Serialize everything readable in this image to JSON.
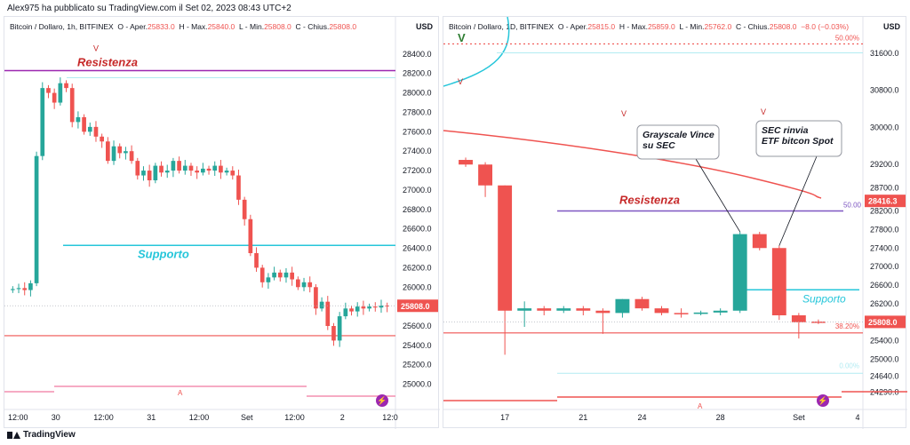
{
  "header": {
    "published": "Alex975 ha pubblicato su TradingView.com il Set 02, 2023 08:43 UTC+2"
  },
  "footer": {
    "brand": "TradingView"
  },
  "colors": {
    "up": "#26a69a",
    "down": "#ef5350",
    "support": "#26c6da",
    "resistance": "#9c27b0",
    "accent_red": "#c62828",
    "fib": "#7e57c2"
  },
  "chart_data": [
    {
      "type": "candlestick",
      "title": "Bitcoin / Dollaro, 1h, BITFINEX",
      "ohlc_label": {
        "o": "O - Aper.",
        "ov": "25833.0",
        "h": "H - Max.",
        "hv": "25840.0",
        "l": "L - Min.",
        "lv": "25808.0",
        "c": "C - Chius.",
        "cv": "25808.0"
      },
      "currency": "USD",
      "ylim": [
        24850,
        28600
      ],
      "y_ticks": [
        "28400.0",
        "28200.0",
        "28000.0",
        "27800.0",
        "27600.0",
        "27400.0",
        "27200.0",
        "27000.0",
        "26800.0",
        "26600.0",
        "26400.0",
        "26200.0",
        "26000.0",
        "25800.0",
        "25600.0",
        "25400.0",
        "25200.0",
        "25000.0"
      ],
      "x_ticks": [
        "12:00",
        "30",
        "12:00",
        "31",
        "12:00",
        "Set",
        "12:00",
        "2",
        "12:0"
      ],
      "price_label": "25808.0",
      "annotations": {
        "resistance": "Resistenza",
        "support": "Supporto",
        "v": "V",
        "a": "A"
      },
      "levels": {
        "resistance": 28230,
        "support": 26430,
        "low_line": 25500
      },
      "closes": [
        25980,
        25990,
        25970,
        26040,
        27350,
        28050,
        28000,
        27900,
        28100,
        28050,
        27700,
        27750,
        27600,
        27650,
        27550,
        27500,
        27300,
        27450,
        27380,
        27400,
        27300,
        27150,
        27200,
        27100,
        27250,
        27180,
        27200,
        27300,
        27200,
        27250,
        27200,
        27180,
        27220,
        27200,
        27250,
        27180,
        27200,
        27150,
        26900,
        26700,
        26350,
        26200,
        26050,
        26100,
        26150,
        26100,
        26150,
        26080,
        26000,
        26050,
        26000,
        25780,
        25850,
        25600,
        25450,
        25700,
        25780,
        25750,
        25800,
        25780,
        25800,
        25790,
        25810,
        25808
      ]
    },
    {
      "type": "candlestick",
      "title": "Bitcoin / Dollaro, 1D, BITFINEX",
      "ohlc_label": {
        "o": "O - Aper.",
        "ov": "25815.0",
        "h": "H - Max.",
        "hv": "25859.0",
        "l": "L - Min.",
        "lv": "25762.0",
        "c": "C - Chius.",
        "cv": "25808.0",
        "chg": "−8.0 (−0.03%)"
      },
      "currency": "USD",
      "ylim": [
        24150,
        32000
      ],
      "y_ticks": [
        "31600.0",
        "30800.0",
        "30000.0",
        "29200.0",
        "28700.0",
        "28200.0",
        "27800.0",
        "27400.0",
        "27000.0",
        "26600.0",
        "26200.0",
        "25800.0",
        "25400.0",
        "25000.0",
        "24640.0",
        "24290.0"
      ],
      "x_ticks": [
        "17",
        "21",
        "24",
        "28",
        "Set",
        "4"
      ],
      "price_labels": [
        "28416.3",
        "25808.0"
      ],
      "annotations": {
        "resistance": "Resistenza",
        "support": "Supporto",
        "callout1": [
          "Grayscale Vince",
          "su SEC"
        ],
        "callout2": [
          "SEC rinvia",
          "ETF bitcon Spot"
        ],
        "fib_50a": "50.00%",
        "fib_50b": "50.00",
        "fib_382": "38.20%",
        "fib_0": "0.00%",
        "v": "V",
        "a": "A"
      },
      "candles": [
        {
          "o": 29300,
          "h": 29350,
          "l": 29150,
          "c": 29200
        },
        {
          "o": 29200,
          "h": 29250,
          "l": 28500,
          "c": 28750
        },
        {
          "o": 28750,
          "h": 28750,
          "l": 25100,
          "c": 26050
        },
        {
          "o": 26050,
          "h": 26250,
          "l": 25700,
          "c": 26100
        },
        {
          "o": 26100,
          "h": 26150,
          "l": 25950,
          "c": 26050
        },
        {
          "o": 26050,
          "h": 26150,
          "l": 26000,
          "c": 26100
        },
        {
          "o": 26100,
          "h": 26150,
          "l": 25950,
          "c": 26050
        },
        {
          "o": 26050,
          "h": 26100,
          "l": 25550,
          "c": 26000
        },
        {
          "o": 26000,
          "h": 26300,
          "l": 25900,
          "c": 26300
        },
        {
          "o": 26300,
          "h": 26350,
          "l": 26050,
          "c": 26100
        },
        {
          "o": 26100,
          "h": 26150,
          "l": 25950,
          "c": 26000
        },
        {
          "o": 26000,
          "h": 26100,
          "l": 25900,
          "c": 25980
        },
        {
          "o": 25980,
          "h": 26050,
          "l": 25950,
          "c": 26010
        },
        {
          "o": 26010,
          "h": 26100,
          "l": 25950,
          "c": 26050
        },
        {
          "o": 26050,
          "h": 27750,
          "l": 26000,
          "c": 27700
        },
        {
          "o": 27700,
          "h": 27750,
          "l": 27350,
          "c": 27400
        },
        {
          "o": 27400,
          "h": 27450,
          "l": 25850,
          "c": 25950
        },
        {
          "o": 25950,
          "h": 26000,
          "l": 25450,
          "c": 25800
        },
        {
          "o": 25815,
          "h": 25859,
          "l": 25762,
          "c": 25808
        }
      ]
    }
  ]
}
